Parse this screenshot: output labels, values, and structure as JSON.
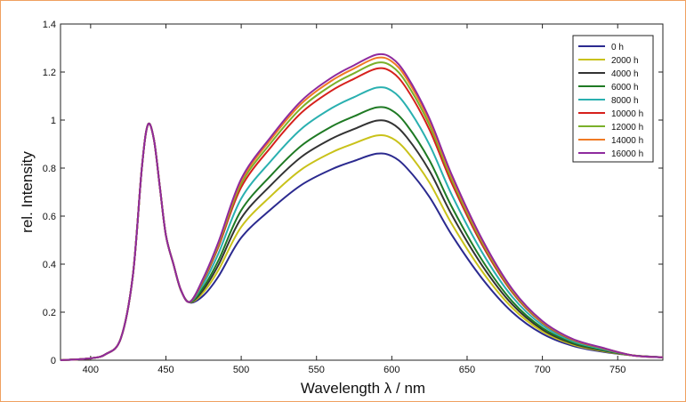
{
  "chart_data": {
    "type": "line",
    "xlabel": "Wavelength λ / nm",
    "ylabel": "rel. Intensity",
    "xlim": [
      380,
      780
    ],
    "ylim": [
      0,
      1.4
    ],
    "x_ticks": [
      400,
      450,
      500,
      550,
      600,
      650,
      700,
      750
    ],
    "x_tick_labels": [
      "400",
      "450",
      "500",
      "550",
      "600",
      "650",
      "700",
      "750"
    ],
    "y_ticks": [
      0,
      0.2,
      0.4,
      0.6,
      0.8,
      1,
      1.2,
      1.4
    ],
    "y_tick_labels": [
      "0",
      "0.2",
      "0.4",
      "0.6",
      "0.8",
      "1",
      "1.2",
      "1.4"
    ],
    "grid": false,
    "legend_position": "top-right",
    "x": [
      380,
      400,
      410,
      420,
      428,
      434,
      438,
      442,
      446,
      450,
      455,
      460,
      466,
      475,
      485,
      500,
      520,
      540,
      560,
      575,
      590,
      600,
      610,
      625,
      640,
      660,
      680,
      700,
      720,
      740,
      760,
      780
    ],
    "blue_profile": [
      0.0,
      0.008,
      0.025,
      0.09,
      0.35,
      0.8,
      0.98,
      0.92,
      0.72,
      0.52,
      0.4,
      0.29,
      0.24,
      0.27,
      0.35,
      0.51,
      0.63,
      0.73,
      0.795,
      0.83,
      0.86,
      0.85,
      0.8,
      0.68,
      0.52,
      0.34,
      0.2,
      0.11,
      0.06,
      0.035,
      0.02,
      0.012
    ],
    "series": [
      {
        "name": "0 h",
        "color": "#2b2a8f",
        "scale": 0.0
      },
      {
        "name": "2000 h",
        "color": "#c9c21a",
        "scale": 0.22
      },
      {
        "name": "4000 h",
        "color": "#333333",
        "scale": 0.4
      },
      {
        "name": "6000 h",
        "color": "#1f7a24",
        "scale": 0.56
      },
      {
        "name": "8000 h",
        "color": "#2ab0b0",
        "scale": 0.8
      },
      {
        "name": "10000 h",
        "color": "#d6201c",
        "scale": 1.03
      },
      {
        "name": "12000 h",
        "color": "#7ab02a",
        "scale": 1.1
      },
      {
        "name": "14000 h",
        "color": "#f07a24",
        "scale": 1.16
      },
      {
        "name": "16000 h",
        "color": "#8e2a9e",
        "scale": 1.2
      }
    ]
  }
}
